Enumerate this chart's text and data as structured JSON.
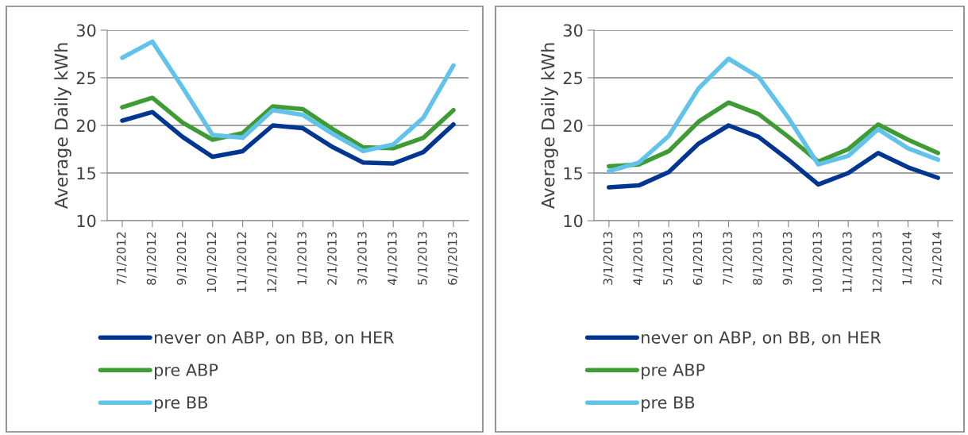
{
  "chart_data": [
    {
      "type": "line",
      "ylabel": "Average Daily kWh",
      "categories": [
        "7/1/2012",
        "8/1/2012",
        "9/1/2012",
        "10/1/2012",
        "11/1/2012",
        "12/1/2012",
        "1/1/2013",
        "2/1/2013",
        "3/1/2013",
        "4/1/2013",
        "5/1/2013",
        "6/1/2013"
      ],
      "ylim": [
        10,
        30
      ],
      "yticks": [
        10,
        15,
        20,
        25,
        30
      ],
      "grid": "y",
      "legend": "bottom",
      "marker": "none",
      "line_style": "solid",
      "series": [
        {
          "name": "never on ABP, on BB, on HER",
          "color": "#003591",
          "values": [
            20.5,
            21.4,
            18.8,
            16.7,
            17.3,
            20.0,
            19.7,
            17.7,
            16.1,
            16.0,
            17.2,
            20.1
          ]
        },
        {
          "name": "pre ABP",
          "color": "#3f9c35",
          "values": [
            21.9,
            22.9,
            20.3,
            18.5,
            19.2,
            22.0,
            21.7,
            19.6,
            17.7,
            17.6,
            18.7,
            21.6
          ]
        },
        {
          "name": "pre BB",
          "color": "#62c3ea",
          "values": [
            27.1,
            28.8,
            24.0,
            19.0,
            18.7,
            21.6,
            21.1,
            19.1,
            17.3,
            18.0,
            20.8,
            26.3
          ]
        }
      ]
    },
    {
      "type": "line",
      "ylabel": "Average Daily kWh",
      "categories": [
        "3/1/2013",
        "4/1/2013",
        "5/1/2013",
        "6/1/2013",
        "7/1/2013",
        "8/1/2013",
        "9/1/2013",
        "10/1/2013",
        "11/1/2013",
        "12/1/2013",
        "1/1/2014",
        "2/1/2014"
      ],
      "ylim": [
        10,
        30
      ],
      "yticks": [
        10,
        15,
        20,
        25,
        30
      ],
      "grid": "y",
      "legend": "bottom",
      "marker": "none",
      "line_style": "solid",
      "series": [
        {
          "name": "never on ABP, on BB, on HER",
          "color": "#003591",
          "values": [
            13.5,
            13.7,
            15.1,
            18.1,
            20.0,
            18.8,
            16.4,
            13.8,
            15.0,
            17.1,
            15.6,
            14.5
          ]
        },
        {
          "name": "pre ABP",
          "color": "#3f9c35",
          "values": [
            15.7,
            15.9,
            17.3,
            20.4,
            22.4,
            21.2,
            18.8,
            16.2,
            17.5,
            20.1,
            18.5,
            17.1
          ]
        },
        {
          "name": "pre BB",
          "color": "#62c3ea",
          "values": [
            15.2,
            16.1,
            18.9,
            23.9,
            27.0,
            25.1,
            20.8,
            15.9,
            16.8,
            19.6,
            17.6,
            16.4
          ]
        }
      ]
    }
  ]
}
